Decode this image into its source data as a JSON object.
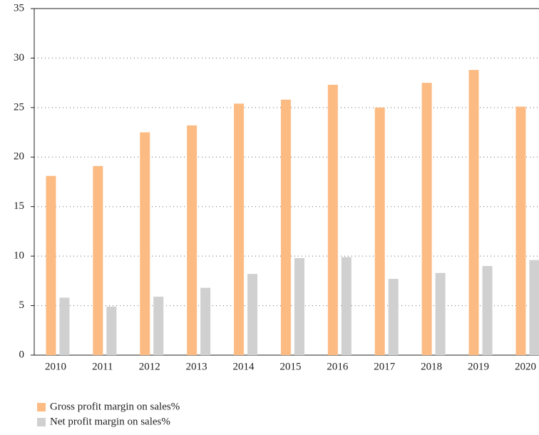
{
  "chart_data": {
    "type": "bar",
    "categories": [
      "2010",
      "2011",
      "2012",
      "2013",
      "2014",
      "2015",
      "2016",
      "2017",
      "2018",
      "2019",
      "2020"
    ],
    "series": [
      {
        "name": "Gross profit margin on sales%",
        "color": "#fdbb84",
        "values": [
          18.1,
          19.1,
          22.5,
          23.2,
          25.4,
          25.8,
          27.3,
          25.0,
          27.5,
          28.8,
          25.1
        ]
      },
      {
        "name": "Net profit margin on sales%",
        "color": "#d0d0d0",
        "values": [
          5.8,
          4.9,
          5.9,
          6.8,
          8.2,
          9.8,
          9.9,
          7.7,
          8.3,
          9.0,
          9.6
        ]
      }
    ],
    "ylim": [
      0,
      35
    ],
    "yticks": [
      0,
      5,
      10,
      15,
      20,
      25,
      30,
      35
    ],
    "grid": true,
    "legend": "bottom-left"
  }
}
